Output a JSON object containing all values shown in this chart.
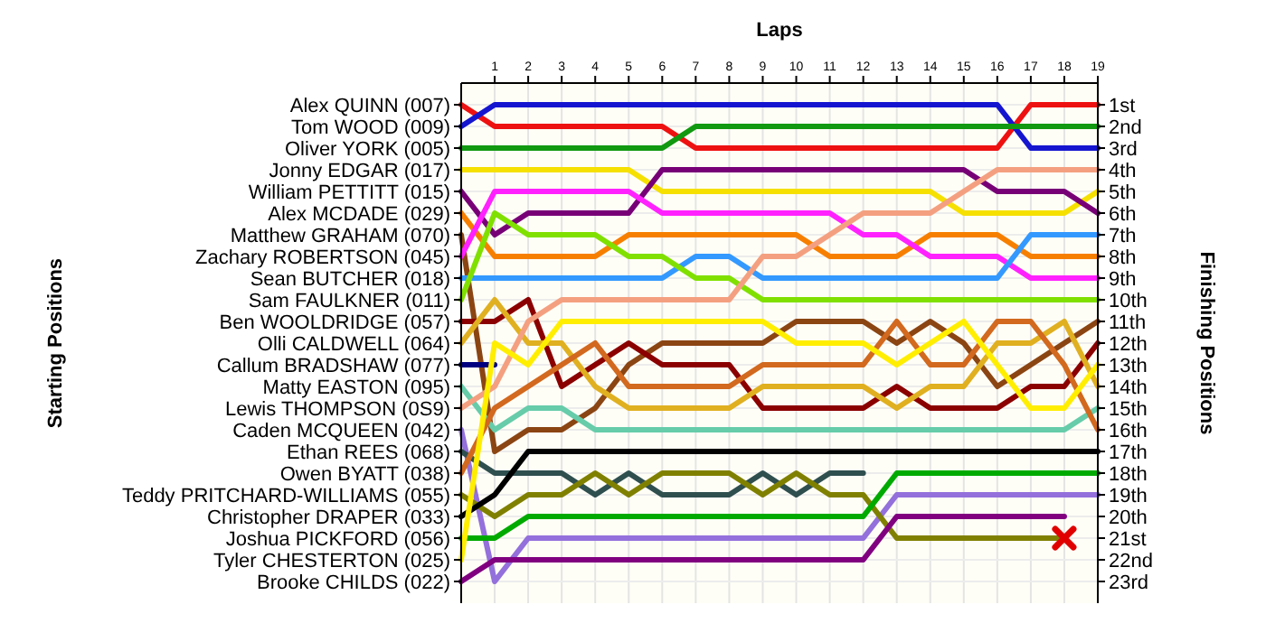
{
  "chart_data": {
    "type": "line",
    "xlabel": "Laps",
    "ylabel": "Finishing Positions",
    "x": [
      0,
      1,
      2,
      3,
      4,
      5,
      6,
      7,
      8,
      9,
      10,
      11,
      12,
      13,
      14,
      15,
      16,
      17,
      18,
      19
    ],
    "xlim": [
      0,
      19
    ],
    "xticks": [
      1,
      2,
      3,
      4,
      5,
      6,
      7,
      8,
      9,
      10,
      11,
      12,
      13,
      14,
      15,
      16,
      17,
      18,
      19
    ],
    "ylim": [
      24,
      0
    ],
    "yticks": [
      {
        "value": 1,
        "label": "1st"
      },
      {
        "value": 2,
        "label": "2nd"
      },
      {
        "value": 3,
        "label": "3rd"
      },
      {
        "value": 4,
        "label": "4th"
      },
      {
        "value": 5,
        "label": "5th"
      },
      {
        "value": 6,
        "label": "6th"
      },
      {
        "value": 7,
        "label": "7th"
      },
      {
        "value": 8,
        "label": "8th"
      },
      {
        "value": 9,
        "label": "9th"
      },
      {
        "value": 10,
        "label": "10th"
      },
      {
        "value": 11,
        "label": "11th"
      },
      {
        "value": 12,
        "label": "12th"
      },
      {
        "value": 13,
        "label": "13th"
      },
      {
        "value": 14,
        "label": "14th"
      },
      {
        "value": 15,
        "label": "15th"
      },
      {
        "value": 16,
        "label": "16th"
      },
      {
        "value": 17,
        "label": "17th"
      },
      {
        "value": 18,
        "label": "18th"
      },
      {
        "value": 19,
        "label": "19th"
      },
      {
        "value": 20,
        "label": "20th"
      },
      {
        "value": 21,
        "label": "21st"
      },
      {
        "value": 22,
        "label": "22nd"
      },
      {
        "value": 23,
        "label": "23rd"
      }
    ],
    "annotations": [
      "Alex QUINN (007)",
      "Tom WOOD (009)",
      "Oliver YORK (005)",
      "Jonny EDGAR (017)",
      "William PETTITT (015)",
      "Alex MCDADE (029)",
      "Matthew GRAHAM (070)",
      "Zachary ROBERTSON (045)",
      "Sean BUTCHER (018)",
      "Sam FAULKNER (011)",
      "Ben WOOLDRIDGE (057)",
      "Olli CALDWELL (064)",
      "Callum BRADSHAW (077)",
      "Matty EASTON (095)",
      "Lewis THOMPSON (0S9)",
      "Caden MCQUEEN (042)",
      "Ethan REES (068)",
      "Owen BYATT (038)",
      "Teddy PRITCHARD-WILLIAMS (055)",
      "Christopher DRAPER (033)",
      "Joshua PICKFORD (056)",
      "Tyler CHESTERTON (025)",
      "Brooke CHILDS (022)",
      "Starting Positions"
    ],
    "grid": true,
    "series": [
      {
        "color": "#ee1111",
        "values": [
          1,
          2,
          2,
          2,
          2,
          2,
          2,
          3,
          3,
          3,
          3,
          3,
          3,
          3,
          3,
          3,
          3,
          1,
          1,
          1
        ]
      },
      {
        "color": "#1515d0",
        "values": [
          2,
          1,
          1,
          1,
          1,
          1,
          1,
          1,
          1,
          1,
          1,
          1,
          1,
          1,
          1,
          1,
          1,
          3,
          3,
          3
        ]
      },
      {
        "color": "#119911",
        "values": [
          3,
          3,
          3,
          3,
          3,
          3,
          3,
          2,
          2,
          2,
          2,
          2,
          2,
          2,
          2,
          2,
          2,
          2,
          2,
          2
        ]
      },
      {
        "color": "#f5e000",
        "values": [
          4,
          4,
          4,
          4,
          4,
          4,
          5,
          5,
          5,
          5,
          5,
          5,
          5,
          5,
          5,
          6,
          6,
          6,
          6,
          5
        ]
      },
      {
        "color": "#770077",
        "values": [
          5,
          7,
          6,
          6,
          6,
          6,
          4,
          4,
          4,
          4,
          4,
          4,
          4,
          4,
          4,
          4,
          5,
          5,
          5,
          6
        ]
      },
      {
        "color": "#f77f00",
        "values": [
          6,
          8,
          8,
          8,
          8,
          7,
          7,
          7,
          7,
          7,
          7,
          8,
          8,
          8,
          7,
          7,
          7,
          8,
          8,
          8
        ]
      },
      {
        "color": "#8b4513",
        "values": [
          7,
          17,
          16,
          16,
          15,
          13,
          12,
          12,
          12,
          12,
          11,
          11,
          11,
          12,
          11,
          12,
          14,
          13,
          12,
          11
        ]
      },
      {
        "color": "#ff22ff",
        "values": [
          8,
          5,
          5,
          5,
          5,
          5,
          6,
          6,
          6,
          6,
          6,
          6,
          7,
          7,
          8,
          8,
          8,
          9,
          9,
          9
        ]
      },
      {
        "color": "#3399ff",
        "values": [
          9,
          9,
          9,
          9,
          9,
          9,
          9,
          8,
          8,
          9,
          9,
          9,
          9,
          9,
          9,
          9,
          9,
          7,
          7,
          7
        ]
      },
      {
        "color": "#80e000",
        "values": [
          10,
          6,
          7,
          7,
          7,
          8,
          8,
          9,
          9,
          10,
          10,
          10,
          10,
          10,
          10,
          10,
          10,
          10,
          10,
          10
        ]
      },
      {
        "color": "#8b0000",
        "values": [
          11,
          11,
          10,
          14,
          13,
          12,
          13,
          13,
          13,
          15,
          15,
          15,
          15,
          14,
          15,
          15,
          15,
          14,
          14,
          12
        ]
      },
      {
        "color": "#e0b020",
        "values": [
          12,
          10,
          12,
          12,
          14,
          15,
          15,
          15,
          15,
          14,
          14,
          14,
          14,
          15,
          14,
          14,
          12,
          12,
          11,
          14
        ]
      },
      {
        "color": "#000080",
        "values": [
          13,
          13,
          null,
          null,
          null,
          null,
          null,
          null,
          null,
          null,
          null,
          null,
          null,
          null,
          null,
          null,
          null,
          null,
          null,
          null
        ]
      },
      {
        "color": "#66ccaa",
        "values": [
          14,
          16,
          15,
          15,
          16,
          16,
          16,
          16,
          16,
          16,
          16,
          16,
          16,
          16,
          16,
          16,
          16,
          16,
          16,
          15
        ]
      },
      {
        "color": "#f4a080",
        "values": [
          15,
          14,
          11,
          10,
          10,
          10,
          10,
          10,
          10,
          8,
          8,
          7,
          6,
          6,
          6,
          5,
          4,
          4,
          4,
          4
        ]
      },
      {
        "color": "#9370db",
        "values": [
          16,
          23,
          21,
          21,
          21,
          21,
          21,
          21,
          21,
          21,
          21,
          21,
          21,
          19,
          19,
          19,
          19,
          19,
          19,
          19
        ]
      },
      {
        "color": "#2f4f4f",
        "values": [
          17,
          18,
          18,
          18,
          19,
          18,
          19,
          19,
          19,
          18,
          19,
          18,
          18,
          null,
          null,
          null,
          null,
          null,
          null,
          null
        ]
      },
      {
        "color": "#d2691e",
        "values": [
          18,
          15,
          14,
          13,
          12,
          14,
          14,
          14,
          14,
          13,
          13,
          13,
          13,
          11,
          13,
          13,
          11,
          11,
          13,
          16
        ]
      },
      {
        "color": "#808000",
        "values": [
          19,
          20,
          19,
          19,
          18,
          19,
          18,
          18,
          18,
          19,
          18,
          19,
          19,
          21,
          21,
          21,
          21,
          21,
          21,
          null
        ]
      },
      {
        "color": "#000000",
        "values": [
          20,
          19,
          17,
          17,
          17,
          17,
          17,
          17,
          17,
          17,
          17,
          17,
          17,
          17,
          17,
          17,
          17,
          17,
          17,
          17
        ]
      },
      {
        "color": "#00aa00",
        "values": [
          21,
          21,
          20,
          20,
          20,
          20,
          20,
          20,
          20,
          20,
          20,
          20,
          20,
          18,
          18,
          18,
          18,
          18,
          18,
          18
        ]
      },
      {
        "color": "#ffee00",
        "values": [
          22,
          12,
          13,
          11,
          11,
          11,
          11,
          11,
          11,
          11,
          12,
          12,
          12,
          13,
          12,
          11,
          13,
          15,
          15,
          13
        ]
      },
      {
        "color": "#800080",
        "values": [
          23,
          22,
          22,
          22,
          22,
          22,
          22,
          22,
          22,
          22,
          22,
          22,
          22,
          20,
          20,
          20,
          20,
          20,
          20,
          null
        ]
      }
    ]
  }
}
